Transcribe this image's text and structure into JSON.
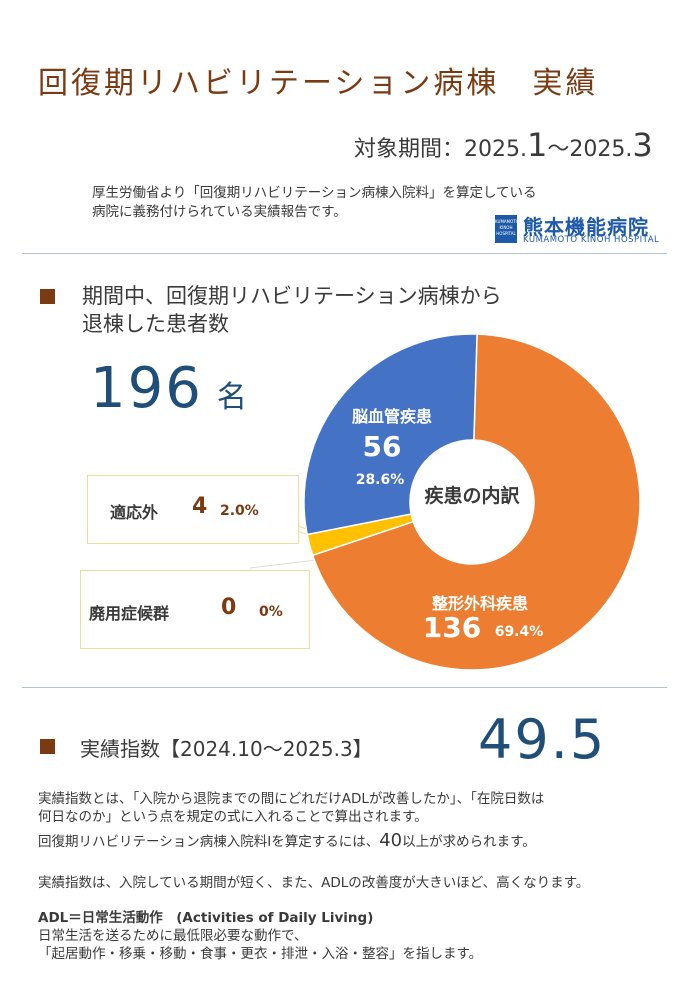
{
  "header": {
    "title": "回復期リハビリテーション病棟　実績",
    "period_prefix": "対象期間：2025.",
    "period_start_month": "1",
    "period_sep": "～2025.",
    "period_end_month": "3",
    "intro_line1": "厚生労働省より「回復期リハビリテーション病棟入院料」を算定している",
    "intro_line2": "病院に義務付けられている実績報告です。"
  },
  "logo": {
    "mark_text": "KUMAMOTO KINOH HOSPITAL",
    "name": "熊本機能病院",
    "en": "KUMAMOTO KINOH HOSPITAL"
  },
  "section1": {
    "title_line1": "期間中、回復期リハビリテーション病棟から",
    "title_line2": "退棟した患者数",
    "total_value": "196",
    "total_unit": "名"
  },
  "chart_data": {
    "type": "pie",
    "center_label": "疾患の内訳",
    "slices": [
      {
        "label": "整形外科疾患",
        "value": 136,
        "percent": "69.4%",
        "color": "#ed7d31"
      },
      {
        "label": "廃用症候群",
        "value": 0,
        "percent": "0%",
        "color": "#a5a5a5"
      },
      {
        "label": "適応外",
        "value": 4,
        "percent": "2.0%",
        "color": "#ffc000"
      },
      {
        "label": "脳血管疾患",
        "value": 56,
        "percent": "28.6%",
        "color": "#4472c4"
      }
    ]
  },
  "section2": {
    "title": "実績指数【2024.10～2025.3】",
    "index_value": "49.5",
    "p1_line1": "実績指数とは、「入院から退院までの間にどれだけADLが改善したか」、「在院日数は",
    "p1_line2": "何日なのか」という点を規定の式に入れることで算出されます。",
    "p2_pre": "回復期リハビリテーション病棟入院料Ⅰを算定するには、",
    "p2_num": "40",
    "p2_post": "以上が求められます。",
    "p3": "実績指数は、入院している期間が短く、また、ADLの改善度が大きいほど、高くなります。",
    "p4_line1": "ADL＝日常生活動作　(Activities of Daily Living)",
    "p4_line2": "日常生活を送るために最低限必要な動作で、",
    "p4_line3": "「起居動作・移乗・移動・食事・更衣・排泄・入浴・整容」を指します。"
  }
}
